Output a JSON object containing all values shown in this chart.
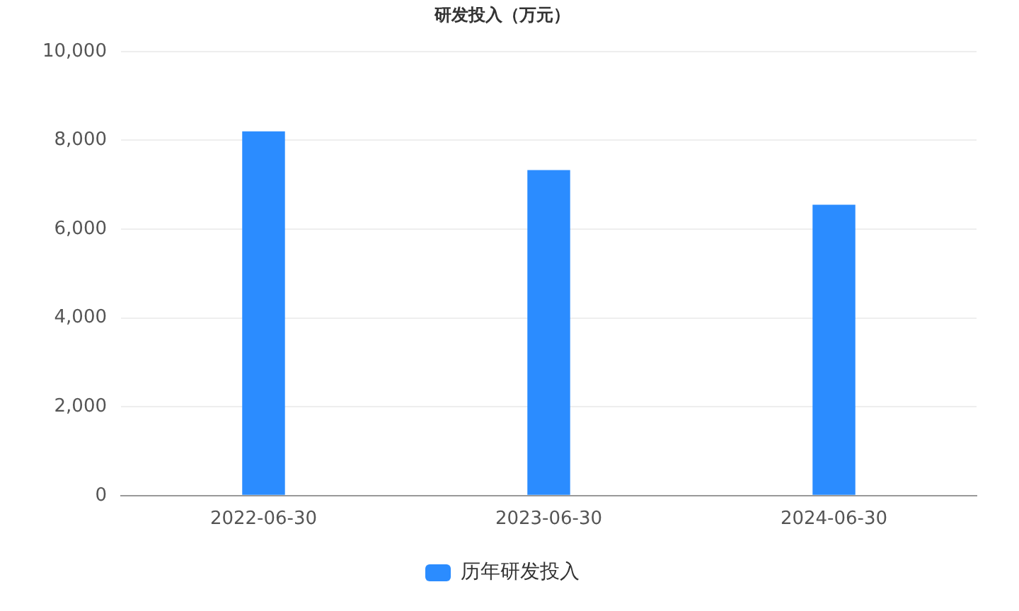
{
  "chart_data": {
    "type": "bar",
    "title": "研发投入（万元）",
    "categories": [
      "2022-06-30",
      "2023-06-30",
      "2024-06-30"
    ],
    "series": [
      {
        "name": "历年研发投入",
        "color": "#2b8cff",
        "values": [
          8200,
          7330,
          6550
        ]
      }
    ],
    "ylim": [
      0,
      10000
    ],
    "yticks": [
      {
        "value": 0,
        "label": "0"
      },
      {
        "value": 2000,
        "label": "2,000"
      },
      {
        "value": 4000,
        "label": "4,000"
      },
      {
        "value": 6000,
        "label": "6,000"
      },
      {
        "value": 8000,
        "label": "8,000"
      },
      {
        "value": 10000,
        "label": "10,000"
      }
    ],
    "grid": "y",
    "legend": "bottom"
  }
}
